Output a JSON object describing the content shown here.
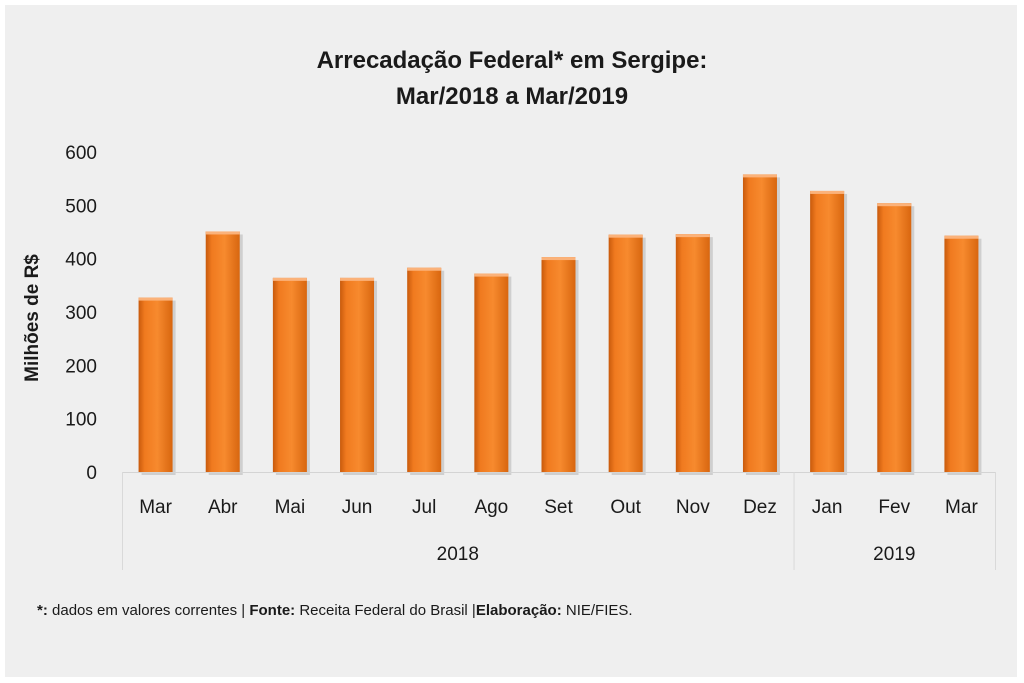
{
  "chart_data": {
    "type": "bar",
    "title_line1": "Arrecadação Federal* em Sergipe:",
    "title_line2": "Mar/2018 a Mar/2019",
    "xlabel": "",
    "ylabel": "Milhões de R$",
    "ylim": [
      0,
      600
    ],
    "yticks": [
      "0",
      "100",
      "200",
      "300",
      "400",
      "500",
      "600"
    ],
    "categories": [
      "Mar",
      "Abr",
      "Mai",
      "Jun",
      "Jul",
      "Ago",
      "Set",
      "Out",
      "Nov",
      "Dez",
      "Jan",
      "Fev",
      "Mar"
    ],
    "values": [
      327,
      451,
      364,
      364,
      383,
      372,
      403,
      445,
      446,
      558,
      527,
      504,
      443
    ],
    "year_groups": [
      {
        "label": "2018",
        "count": 10
      },
      {
        "label": "2019",
        "count": 3
      }
    ],
    "bar_color": "#f07a1f",
    "grid": false,
    "legend": "none"
  },
  "footnote": {
    "asterisk_label": "*:",
    "asterisk_text": " dados em valores correntes | ",
    "source_label": "Fonte:",
    "source_text": " Receita Federal do Brasil |",
    "author_label": "Elaboração:",
    "author_text": " NIE/FIES."
  }
}
